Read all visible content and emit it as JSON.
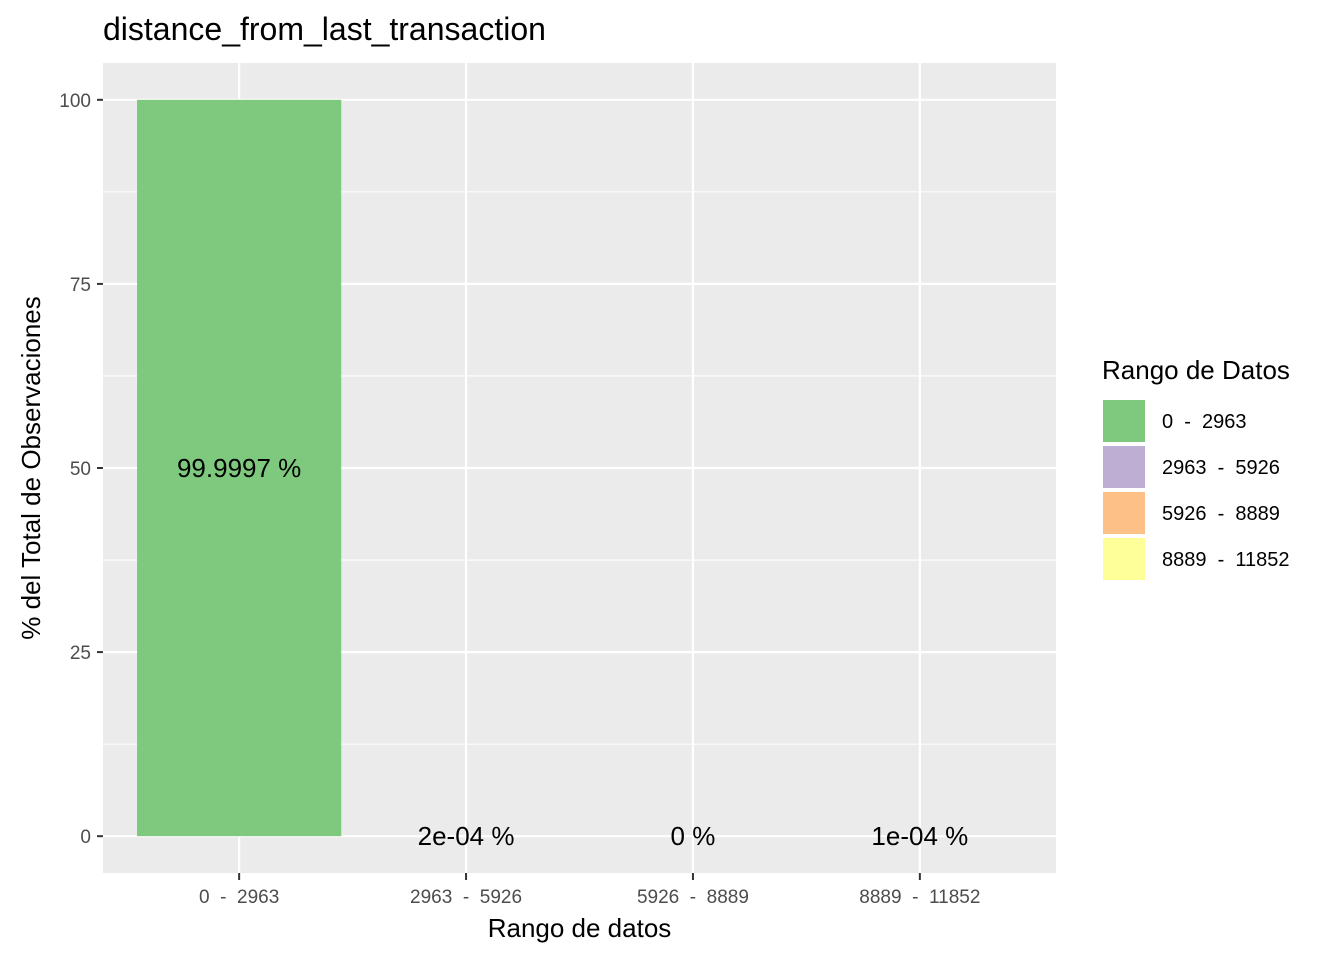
{
  "chart_data": {
    "type": "bar",
    "title": "distance_from_last_transaction",
    "xlabel": "Rango de datos",
    "ylabel": "% del Total de Observaciones",
    "categories": [
      "0  -  2963",
      "2963  -  5926",
      "5926  -  8889",
      "8889  -  11852"
    ],
    "values": [
      99.9997,
      0.0002,
      0,
      0.0001
    ],
    "data_labels": [
      "99.9997 %",
      "2e-04 %",
      "0 %",
      "1e-04 %"
    ],
    "ylim": [
      -5,
      105
    ],
    "yticks": [
      0,
      25,
      50,
      75,
      100
    ],
    "ytick_labels": [
      "0",
      "25",
      "50",
      "75",
      "100"
    ],
    "grid": true,
    "colors": [
      "#7FC97F",
      "#BEAED4",
      "#FDC086",
      "#FFFF99"
    ],
    "panel_background": "#EBEBEB",
    "legend": {
      "title": "Rango de Datos",
      "position": "right",
      "items": [
        "0  -  2963",
        "2963  -  5926",
        "5926  -  8889",
        "8889  -  11852"
      ]
    }
  }
}
